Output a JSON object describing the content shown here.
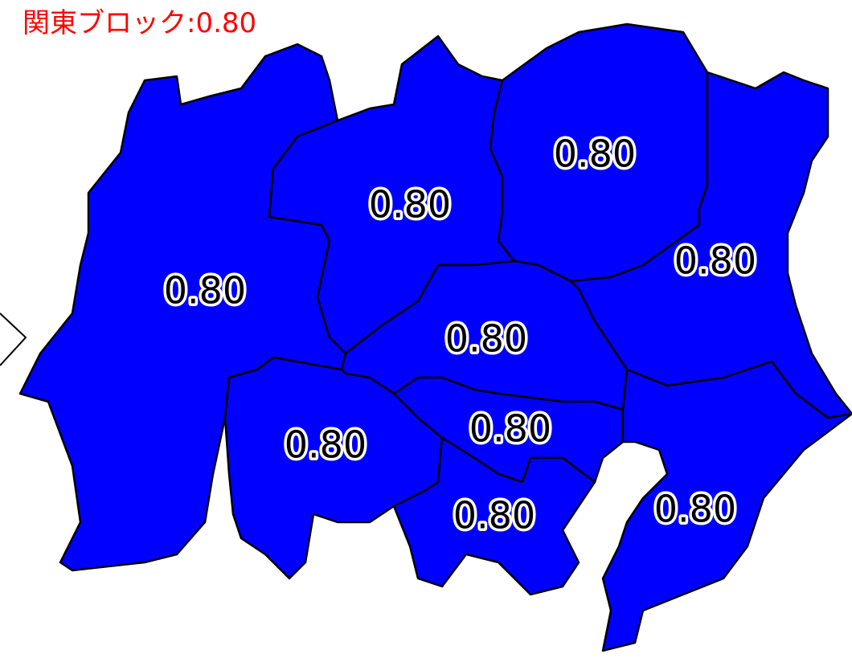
{
  "title": "関東ブロック:0.80",
  "regions": [
    {
      "label": "0.80"
    },
    {
      "label": "0.80"
    },
    {
      "label": "0.80"
    },
    {
      "label": "0.80"
    },
    {
      "label": "0.80"
    },
    {
      "label": "0.80"
    },
    {
      "label": "0.80"
    },
    {
      "label": "0.80"
    },
    {
      "label": "0.80"
    }
  ]
}
